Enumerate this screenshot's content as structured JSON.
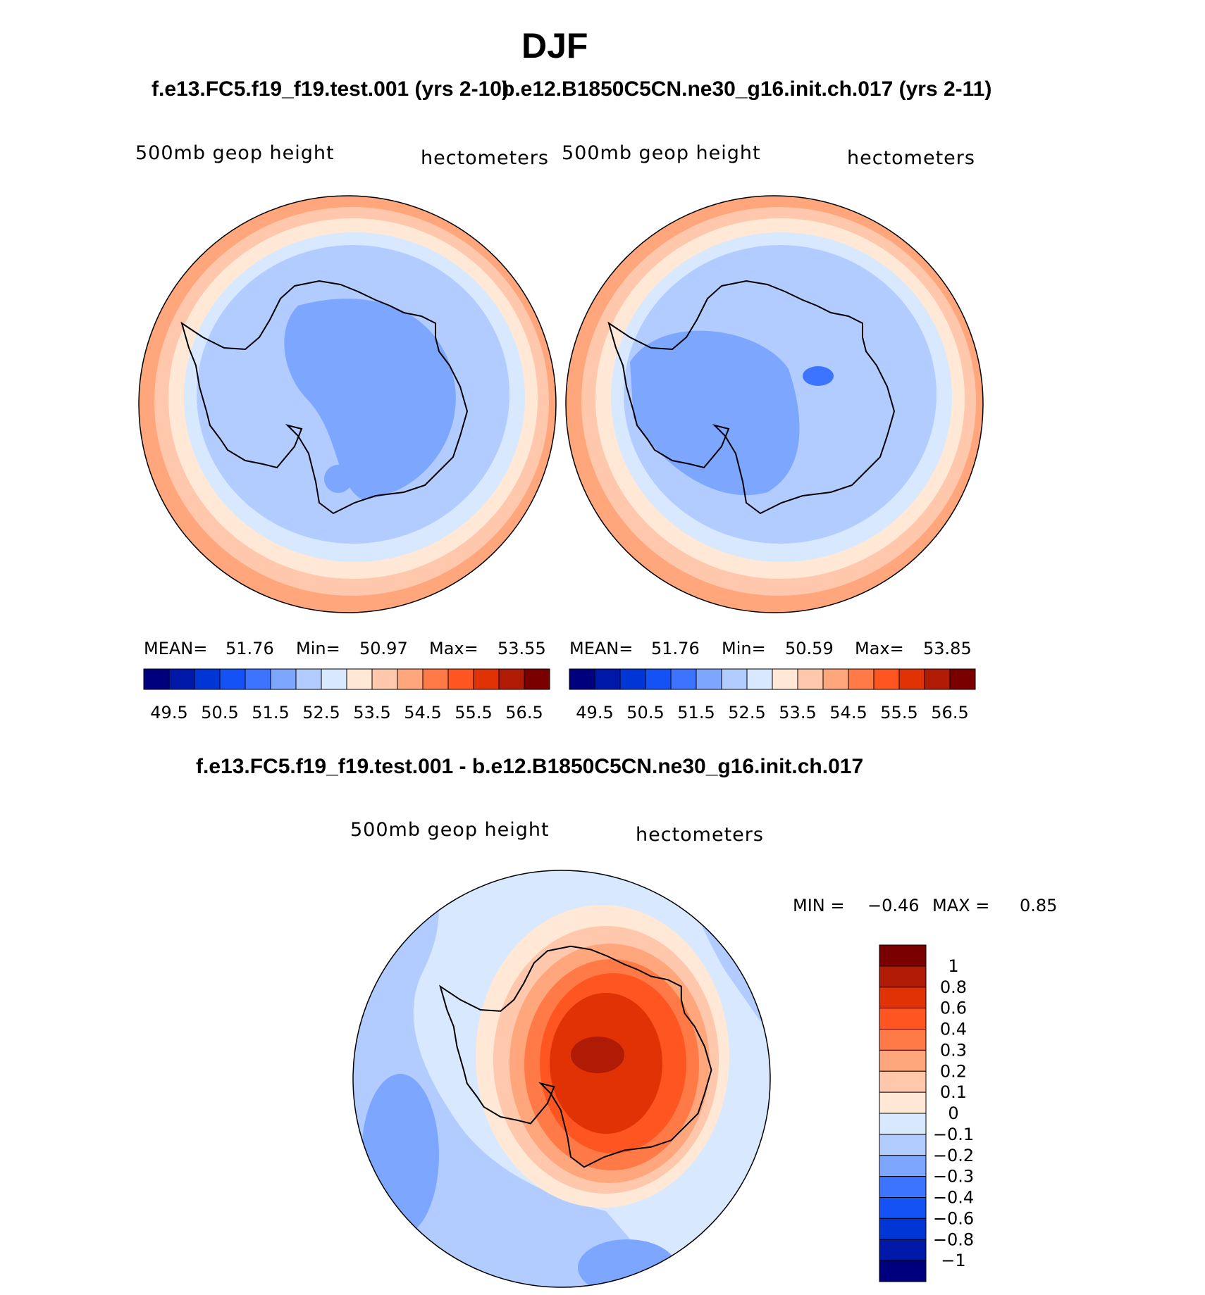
{
  "chart_data": {
    "title": "DJF",
    "panels": [
      {
        "type": "heatmap",
        "projection": "south-polar-stereographic",
        "case": "f.e13.FC5.f19_f19.test.001 (yrs 2-10)",
        "variable_label": "500mb geop height",
        "units": "hectometers",
        "stats": {
          "mean_label": "MEAN=",
          "mean": "51.76",
          "min_label": "Min=",
          "min": "50.97",
          "max_label": "Max=",
          "max": "53.55"
        },
        "fields": [
          "53.7",
          "53.2",
          "52.8",
          "52.2",
          "51.8",
          "51.2",
          "51.8",
          "51.2"
        ],
        "colorbar": {
          "colors": [
            "#00007f",
            "#0018a8",
            "#0035d6",
            "#1552f5",
            "#3d74ff",
            "#7da6ff",
            "#b3ccff",
            "#d7e8ff",
            "#ffe8d6",
            "#ffc8ad",
            "#ffa67d",
            "#ff7a47",
            "#ff5520",
            "#e03205",
            "#b01b05",
            "#7a0000"
          ],
          "labels": [
            "49.5",
            "50.5",
            "51.5",
            "52.5",
            "53.5",
            "54.5",
            "55.5",
            "56.5"
          ]
        }
      },
      {
        "type": "heatmap",
        "projection": "south-polar-stereographic",
        "case": "b.e12.B1850C5CN.ne30_g16.init.ch.017 (yrs 2-11)",
        "variable_label": "500mb geop height",
        "units": "hectometers",
        "stats": {
          "mean_label": "MEAN=",
          "mean": "51.76",
          "min_label": "Min=",
          "min": "50.59",
          "max_label": "Max=",
          "max": "53.85"
        },
        "fields": [
          "53.7",
          "53.2",
          "52.8",
          "52.2",
          "51.8",
          "51.2",
          "51.0",
          "50.8"
        ],
        "colorbar": {
          "colors": [
            "#00007f",
            "#0018a8",
            "#0035d6",
            "#1552f5",
            "#3d74ff",
            "#7da6ff",
            "#b3ccff",
            "#d7e8ff",
            "#ffe8d6",
            "#ffc8ad",
            "#ffa67d",
            "#ff7a47",
            "#ff5520",
            "#e03205",
            "#b01b05",
            "#7a0000"
          ],
          "labels": [
            "49.5",
            "50.5",
            "51.5",
            "52.5",
            "53.5",
            "54.5",
            "55.5",
            "56.5"
          ]
        }
      },
      {
        "type": "heatmap",
        "projection": "south-polar-stereographic",
        "case": "f.e13.FC5.f19_f19.test.001 - b.e12.B1850C5CN.ne30_g16.init.ch.017",
        "variable_label": "500mb geop height",
        "units": "hectometers",
        "stats": {
          "min_label": "MIN =",
          "min": "−0.46",
          "max_label": "MAX =",
          "max": "0.85"
        },
        "fields": [
          "-0.05",
          "-0.25",
          "-0.15",
          "0.05",
          "0.15",
          "0.25",
          "0.35",
          "0.5",
          "0.7",
          "0.85"
        ],
        "colorbar": {
          "colors": [
            "#00007f",
            "#0018a8",
            "#0035d6",
            "#1552f5",
            "#3d74ff",
            "#7da6ff",
            "#b3ccff",
            "#d7e8ff",
            "#ffe8d6",
            "#ffc8ad",
            "#ffa67d",
            "#ff7a47",
            "#ff5520",
            "#e03205",
            "#b01b05",
            "#7a0000"
          ],
          "labels": [
            "1",
            "0.8",
            "0.6",
            "0.4",
            "0.3",
            "0.2",
            "0.1",
            "0",
            "−0.1",
            "−0.2",
            "−0.3",
            "−0.4",
            "−0.6",
            "−0.8",
            "−1"
          ]
        }
      }
    ]
  }
}
